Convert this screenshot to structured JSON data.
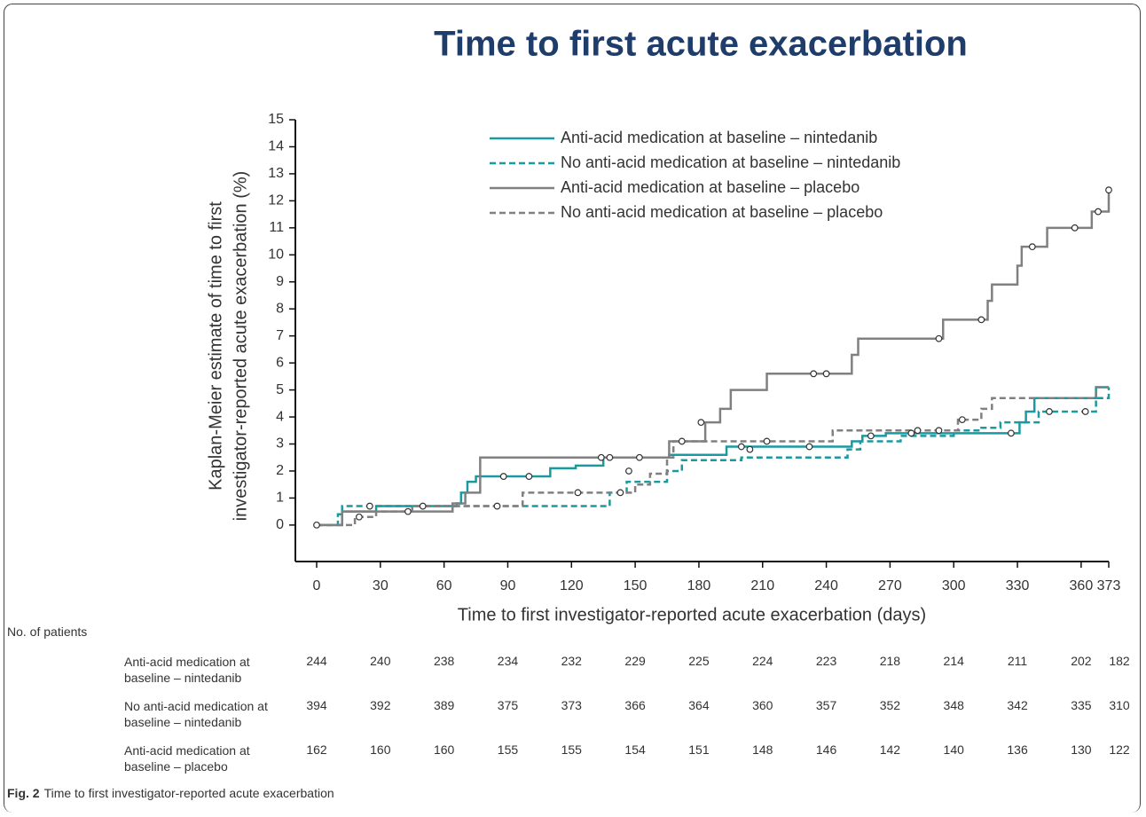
{
  "chart_data": {
    "type": "step",
    "title": "Time to first acute exacerbation",
    "xlabel": "Time to first investigator-reported acute exacerbation (days)",
    "ylabel": [
      "Kaplan-Meier estimate of time to first",
      "investigator-reported acute exacerbation (%)"
    ],
    "xlim": [
      0,
      373
    ],
    "xticks": [
      0,
      30,
      60,
      90,
      120,
      150,
      180,
      210,
      240,
      270,
      300,
      330,
      360,
      373
    ],
    "ylim": [
      -1.35,
      15
    ],
    "yticks": [
      0,
      1,
      2,
      3,
      4,
      5,
      6,
      7,
      8,
      9,
      10,
      11,
      12,
      13,
      14,
      15
    ],
    "legend": "upper center",
    "series": [
      {
        "name": "Anti-acid medication at baseline – nintedanib",
        "color": "#1a9aa0",
        "dash": false,
        "x": [
          0,
          12,
          28,
          66,
          68,
          71,
          75,
          110,
          122,
          135,
          166,
          193,
          252,
          257,
          268,
          331,
          334,
          338,
          344,
          367,
          373
        ],
        "values": [
          0,
          0.5,
          0.7,
          0.8,
          1.2,
          1.6,
          1.8,
          2.1,
          2.2,
          2.5,
          2.6,
          2.9,
          3.1,
          3.3,
          3.4,
          3.8,
          4.2,
          4.7,
          4.7,
          5.1,
          5.1
        ],
        "censored_x": [
          0,
          88,
          100,
          138,
          200,
          232,
          280,
          327
        ],
        "censored_y": [
          0,
          1.8,
          1.8,
          2.5,
          2.9,
          2.9,
          3.4,
          3.4
        ]
      },
      {
        "name": "No anti-acid medication at baseline – nintedanib",
        "color": "#1a9aa0",
        "dash": true,
        "x": [
          0,
          10,
          12,
          97,
          138,
          146,
          165,
          172,
          200,
          250,
          256,
          275,
          300,
          313,
          322,
          340,
          364,
          367,
          373
        ],
        "values": [
          0,
          0.4,
          0.7,
          0.7,
          1.2,
          1.6,
          2.0,
          2.4,
          2.5,
          2.8,
          3.1,
          3.3,
          3.5,
          3.6,
          3.8,
          4.2,
          4.2,
          4.7,
          5.1
        ],
        "censored_x": [
          25,
          50,
          123,
          147,
          204,
          261,
          293,
          345,
          362
        ],
        "censored_y": [
          0.7,
          0.7,
          1.2,
          2.0,
          2.8,
          3.3,
          3.5,
          4.2,
          4.2
        ]
      },
      {
        "name": "Anti-acid medication at baseline – placebo",
        "color": "#808080",
        "dash": false,
        "x": [
          0,
          12,
          64,
          70,
          77,
          166,
          183,
          190,
          195,
          212,
          252,
          255,
          295,
          316,
          318,
          330,
          332,
          344,
          365,
          373
        ],
        "values": [
          0,
          0.5,
          0.8,
          1.2,
          2.5,
          3.1,
          3.8,
          4.3,
          5.0,
          5.6,
          6.3,
          6.9,
          7.6,
          8.3,
          8.9,
          9.6,
          10.3,
          11.0,
          11.6,
          12.4
        ],
        "censored_x": [
          134,
          152,
          181,
          234,
          240,
          293,
          313,
          337,
          357,
          368,
          373
        ],
        "censored_y": [
          2.5,
          2.5,
          3.8,
          5.6,
          5.6,
          6.9,
          7.6,
          10.3,
          11.0,
          11.6,
          12.4
        ]
      },
      {
        "name": "No anti-acid medication at baseline – placebo",
        "color": "#808080",
        "dash": true,
        "x": [
          0,
          18,
          28,
          45,
          97,
          150,
          157,
          165,
          168,
          243,
          302,
          313,
          318,
          367,
          373
        ],
        "values": [
          0,
          0.3,
          0.5,
          0.7,
          1.2,
          1.5,
          1.9,
          2.5,
          3.1,
          3.5,
          3.9,
          4.3,
          4.7,
          5.1,
          5.1
        ],
        "censored_x": [
          20,
          43,
          85,
          143,
          172,
          212,
          283,
          304
        ],
        "censored_y": [
          0.3,
          0.5,
          0.7,
          1.2,
          3.1,
          3.1,
          3.5,
          3.9
        ]
      }
    ],
    "risk_table": {
      "title": "No. of patients",
      "rows": [
        {
          "label": "Anti-acid medication at baseline – nintedanib",
          "values": [
            244,
            240,
            238,
            234,
            232,
            229,
            225,
            224,
            223,
            218,
            214,
            211,
            202,
            182
          ]
        },
        {
          "label": "No anti-acid medication at baseline – nintedanib",
          "values": [
            394,
            392,
            389,
            375,
            373,
            366,
            364,
            360,
            357,
            352,
            348,
            342,
            335,
            310
          ]
        },
        {
          "label": "Anti-acid medication at baseline – placebo",
          "values": [
            162,
            160,
            160,
            155,
            155,
            154,
            151,
            148,
            146,
            142,
            140,
            136,
            130,
            122
          ]
        }
      ]
    },
    "caption_label": "Fig. 2",
    "caption": "Time to first investigator-reported acute exacerbation"
  }
}
